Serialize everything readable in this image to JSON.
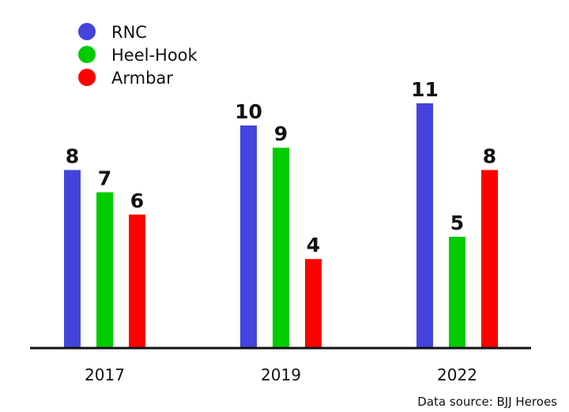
{
  "chart_data": {
    "type": "bar",
    "categories": [
      "2017",
      "2019",
      "2022"
    ],
    "series": [
      {
        "name": "RNC",
        "values": [
          8,
          10,
          11
        ],
        "color": "#4444dd"
      },
      {
        "name": "Heel-Hook",
        "values": [
          7,
          9,
          5
        ],
        "color": "#00cc00"
      },
      {
        "name": "Armbar",
        "values": [
          6,
          4,
          8
        ],
        "color": "#ff0000"
      }
    ],
    "title": "",
    "xlabel": "",
    "ylabel": "",
    "ylim": [
      0,
      11
    ],
    "grid": false,
    "legend_position": "top-left",
    "axis_color": "#111111"
  },
  "footer": {
    "source": "Data source: BJJ Heroes"
  }
}
